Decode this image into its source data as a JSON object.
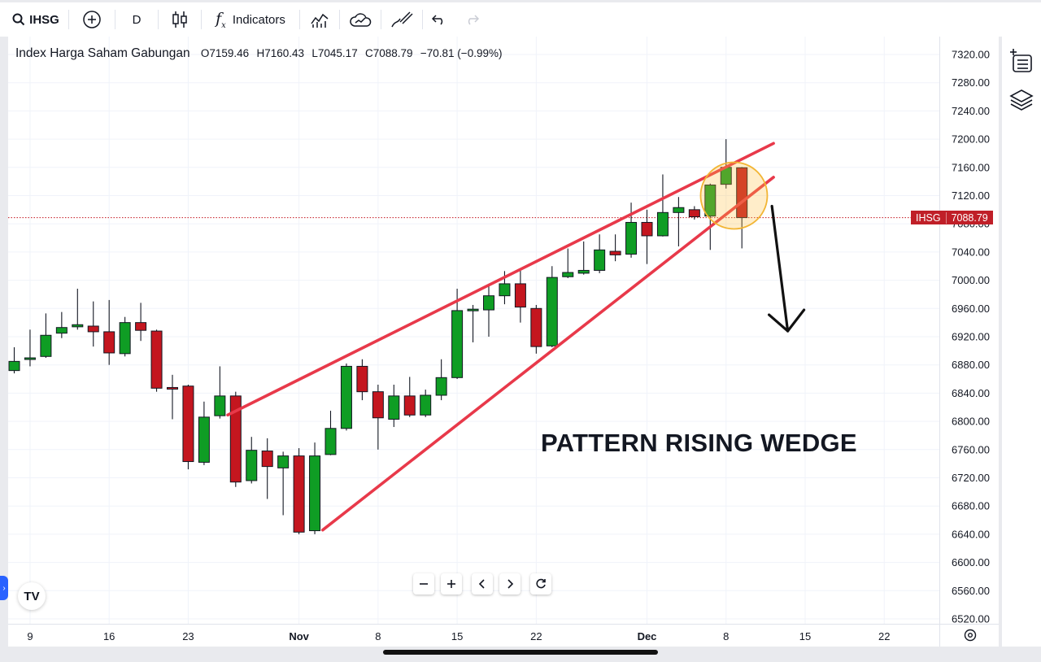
{
  "toolbar": {
    "symbol": "IHSG",
    "interval": "D",
    "indicators_label": "Indicators"
  },
  "legend": {
    "name": "Index Harga Saham Gabungan",
    "open": "O7159.46",
    "high": "H7160.43",
    "low": "L7045.17",
    "close": "C7088.79",
    "change": "−70.81 (−0.99%)"
  },
  "price_tag": {
    "symbol": "IHSG",
    "value": "7088.79"
  },
  "annotation": "PATTERN RISING WEDGE",
  "logo_text": "TV",
  "colors": {
    "up": "#0f9d24",
    "down": "#c4161f",
    "wedge": "#e8394a",
    "tag": "#c01f28"
  },
  "chart_data": {
    "type": "candlestick",
    "ylim": [
      6520,
      7320
    ],
    "y_ticks": [
      "6520.00",
      "6560.00",
      "6600.00",
      "6640.00",
      "6680.00",
      "6720.00",
      "6760.00",
      "6800.00",
      "6840.00",
      "6880.00",
      "6920.00",
      "6960.00",
      "7000.00",
      "7040.00",
      "7080.00",
      "7120.00",
      "7160.00",
      "7200.00",
      "7240.00",
      "7280.00",
      "7320.00"
    ],
    "x_ticks": [
      {
        "i": 1,
        "label": "9"
      },
      {
        "i": 6,
        "label": "16"
      },
      {
        "i": 11,
        "label": "23"
      },
      {
        "i": 18,
        "label": "Nov",
        "bold": true
      },
      {
        "i": 23,
        "label": "8"
      },
      {
        "i": 28,
        "label": "15"
      },
      {
        "i": 33,
        "label": "22"
      },
      {
        "i": 40,
        "label": "Dec",
        "bold": true
      },
      {
        "i": 45,
        "label": "8"
      },
      {
        "i": 50,
        "label": "15"
      },
      {
        "i": 55,
        "label": "22"
      }
    ],
    "candles": [
      {
        "o": 6872,
        "h": 6905,
        "l": 6868,
        "c": 6885
      },
      {
        "o": 6888,
        "h": 6930,
        "l": 6878,
        "c": 6890
      },
      {
        "o": 6892,
        "h": 6953,
        "l": 6890,
        "c": 6922
      },
      {
        "o": 6925,
        "h": 6955,
        "l": 6918,
        "c": 6933
      },
      {
        "o": 6934,
        "h": 6988,
        "l": 6930,
        "c": 6937
      },
      {
        "o": 6935,
        "h": 6970,
        "l": 6906,
        "c": 6927
      },
      {
        "o": 6927,
        "h": 6972,
        "l": 6880,
        "c": 6897
      },
      {
        "o": 6896,
        "h": 6948,
        "l": 6892,
        "c": 6940
      },
      {
        "o": 6940,
        "h": 6968,
        "l": 6914,
        "c": 6929
      },
      {
        "o": 6928,
        "h": 6930,
        "l": 6842,
        "c": 6847
      },
      {
        "o": 6848,
        "h": 6866,
        "l": 6803,
        "c": 6846
      },
      {
        "o": 6850,
        "h": 6852,
        "l": 6732,
        "c": 6743
      },
      {
        "o": 6742,
        "h": 6828,
        "l": 6738,
        "c": 6806
      },
      {
        "o": 6808,
        "h": 6878,
        "l": 6804,
        "c": 6836
      },
      {
        "o": 6836,
        "h": 6842,
        "l": 6707,
        "c": 6714
      },
      {
        "o": 6716,
        "h": 6778,
        "l": 6712,
        "c": 6759
      },
      {
        "o": 6758,
        "h": 6776,
        "l": 6690,
        "c": 6736
      },
      {
        "o": 6734,
        "h": 6757,
        "l": 6667,
        "c": 6751
      },
      {
        "o": 6751,
        "h": 6762,
        "l": 6640,
        "c": 6643
      },
      {
        "o": 6645,
        "h": 6770,
        "l": 6640,
        "c": 6751
      },
      {
        "o": 6753,
        "h": 6815,
        "l": 6752,
        "c": 6790
      },
      {
        "o": 6790,
        "h": 6882,
        "l": 6787,
        "c": 6878
      },
      {
        "o": 6878,
        "h": 6888,
        "l": 6830,
        "c": 6842
      },
      {
        "o": 6842,
        "h": 6852,
        "l": 6760,
        "c": 6805
      },
      {
        "o": 6803,
        "h": 6852,
        "l": 6792,
        "c": 6836
      },
      {
        "o": 6836,
        "h": 6863,
        "l": 6806,
        "c": 6809
      },
      {
        "o": 6809,
        "h": 6845,
        "l": 6806,
        "c": 6837
      },
      {
        "o": 6837,
        "h": 6888,
        "l": 6830,
        "c": 6862
      },
      {
        "o": 6862,
        "h": 6988,
        "l": 6860,
        "c": 6957
      },
      {
        "o": 6958,
        "h": 6965,
        "l": 6912,
        "c": 6959
      },
      {
        "o": 6958,
        "h": 6995,
        "l": 6920,
        "c": 6978
      },
      {
        "o": 6978,
        "h": 7013,
        "l": 6966,
        "c": 6995
      },
      {
        "o": 6995,
        "h": 7014,
        "l": 6940,
        "c": 6962
      },
      {
        "o": 6960,
        "h": 6965,
        "l": 6896,
        "c": 6906
      },
      {
        "o": 6907,
        "h": 7020,
        "l": 6905,
        "c": 7004
      },
      {
        "o": 7005,
        "h": 7045,
        "l": 7003,
        "c": 7011
      },
      {
        "o": 7010,
        "h": 7055,
        "l": 7008,
        "c": 7014
      },
      {
        "o": 7014,
        "h": 7065,
        "l": 7010,
        "c": 7043
      },
      {
        "o": 7041,
        "h": 7065,
        "l": 7027,
        "c": 7036
      },
      {
        "o": 7037,
        "h": 7110,
        "l": 7032,
        "c": 7082
      },
      {
        "o": 7082,
        "h": 7100,
        "l": 7023,
        "c": 7063
      },
      {
        "o": 7063,
        "h": 7150,
        "l": 7062,
        "c": 7096
      },
      {
        "o": 7096,
        "h": 7118,
        "l": 7048,
        "c": 7103
      },
      {
        "o": 7100,
        "h": 7105,
        "l": 7086,
        "c": 7090
      },
      {
        "o": 7091,
        "h": 7137,
        "l": 7043,
        "c": 7135
      },
      {
        "o": 7136,
        "h": 7200,
        "l": 7130,
        "c": 7160
      },
      {
        "o": 7159.46,
        "h": 7160.43,
        "l": 7045.17,
        "c": 7088.79
      }
    ],
    "last_price": 7088.79,
    "overlays": [
      {
        "type": "line",
        "from": {
          "i": 13.5,
          "y": 6809
        },
        "to": {
          "i": 48,
          "y": 7194
        }
      },
      {
        "type": "line",
        "from": {
          "i": 19.5,
          "y": 6646
        },
        "to": {
          "i": 48,
          "y": 7146
        }
      },
      {
        "type": "circle",
        "center": {
          "i": 45.5,
          "y": 7120
        }
      },
      {
        "type": "arrow",
        "from": {
          "i": 47.9,
          "y": 7105
        },
        "to": {
          "i": 48.9,
          "y": 6928
        }
      }
    ]
  }
}
